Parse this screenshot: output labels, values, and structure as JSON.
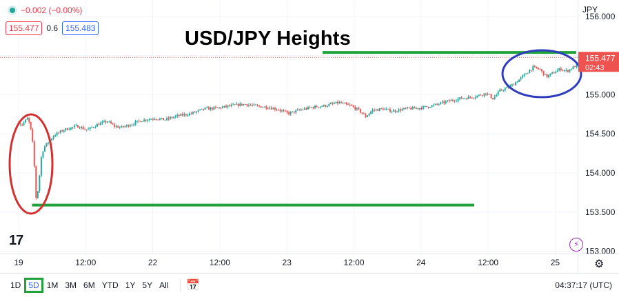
{
  "legend": {
    "change": "−0.002 (−0.00%)"
  },
  "quote": {
    "sell": "155.477",
    "spread": "0.6",
    "buy": "155.483"
  },
  "annotation_title": "USD/JPY Heights",
  "currency": "JPY",
  "logo_text": "17",
  "price_label": {
    "price": "155.477",
    "countdown": "02:43"
  },
  "bottom_bar": {
    "ranges": [
      "1D",
      "5D",
      "1M",
      "3M",
      "6M",
      "YTD",
      "1Y",
      "5Y",
      "All"
    ],
    "active_range": "5D",
    "clock": "04:37:17 (UTC)"
  },
  "colors": {
    "up": "#26a69a",
    "down": "#ef5350",
    "support_line": "#1fa33a",
    "low_circle": "#d32f2f",
    "high_circle": "#2f3dbd"
  },
  "chart_data": {
    "type": "candlestick",
    "x_labels": [
      "19",
      "12:00",
      "22",
      "12:00",
      "23",
      "12:00",
      "24",
      "12:00",
      "25"
    ],
    "y_ticks": [
      "156.000",
      "155.500",
      "155.000",
      "154.500",
      "154.000",
      "153.500",
      "153.000"
    ],
    "ylim": [
      152.97,
      156.21
    ],
    "last_price": 155.477,
    "path": [
      [
        0,
        154.64
      ],
      [
        0.08,
        154.62
      ],
      [
        0.16,
        154.7
      ],
      [
        0.2,
        154.6
      ],
      [
        0.24,
        154.35
      ],
      [
        0.27,
        153.95
      ],
      [
        0.29,
        153.62
      ],
      [
        0.33,
        153.9
      ],
      [
        0.37,
        154.25
      ],
      [
        0.42,
        154.35
      ],
      [
        0.48,
        154.4
      ],
      [
        0.55,
        154.48
      ],
      [
        0.7,
        154.55
      ],
      [
        0.9,
        154.6
      ],
      [
        1.05,
        154.55
      ],
      [
        1.2,
        154.62
      ],
      [
        1.35,
        154.66
      ],
      [
        1.45,
        154.6
      ],
      [
        1.55,
        154.58
      ],
      [
        1.7,
        154.62
      ],
      [
        1.85,
        154.67
      ],
      [
        2.05,
        154.7
      ],
      [
        2.2,
        154.68
      ],
      [
        2.4,
        154.73
      ],
      [
        2.6,
        154.76
      ],
      [
        2.8,
        154.82
      ],
      [
        3.0,
        154.83
      ],
      [
        3.2,
        154.86
      ],
      [
        3.4,
        154.88
      ],
      [
        3.6,
        154.85
      ],
      [
        3.75,
        154.84
      ],
      [
        3.9,
        154.81
      ],
      [
        4.05,
        154.76
      ],
      [
        4.2,
        154.8
      ],
      [
        4.4,
        154.84
      ],
      [
        4.6,
        154.86
      ],
      [
        4.8,
        154.9
      ],
      [
        5.0,
        154.85
      ],
      [
        5.1,
        154.8
      ],
      [
        5.2,
        154.72
      ],
      [
        5.3,
        154.8
      ],
      [
        5.45,
        154.82
      ],
      [
        5.6,
        154.79
      ],
      [
        5.8,
        154.82
      ],
      [
        6.0,
        154.83
      ],
      [
        6.2,
        154.86
      ],
      [
        6.4,
        154.91
      ],
      [
        6.6,
        154.95
      ],
      [
        6.8,
        154.97
      ],
      [
        7.0,
        155.02
      ],
      [
        7.1,
        154.95
      ],
      [
        7.2,
        155.05
      ],
      [
        7.35,
        155.1
      ],
      [
        7.5,
        155.2
      ],
      [
        7.6,
        155.28
      ],
      [
        7.7,
        155.35
      ],
      [
        7.8,
        155.32
      ],
      [
        7.9,
        155.23
      ],
      [
        8.0,
        155.28
      ],
      [
        8.1,
        155.33
      ],
      [
        8.2,
        155.3
      ],
      [
        8.35,
        155.38
      ],
      [
        8.5,
        155.42
      ],
      [
        8.65,
        155.45
      ],
      [
        8.72,
        155.477
      ]
    ],
    "support_level": 153.59,
    "resistance_level": 155.54
  }
}
